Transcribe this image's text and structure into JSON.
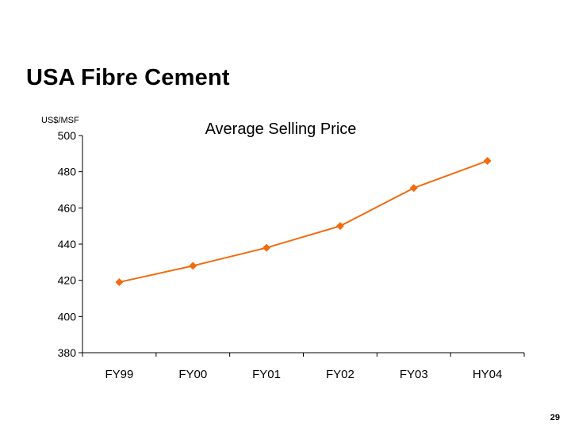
{
  "slide": {
    "title": "USA Fibre Cement",
    "page_number": "29"
  },
  "colors": {
    "series": "#f26b0f",
    "axis": "#000000",
    "background": "#ffffff"
  },
  "chart_data": {
    "type": "line",
    "title": "Average Selling Price",
    "ylabel": "US$/MSF",
    "xlabel": "",
    "categories": [
      "FY99",
      "FY00",
      "FY01",
      "FY02",
      "FY03",
      "HY04"
    ],
    "series": [
      {
        "values": [
          419,
          428,
          438,
          450,
          471,
          486
        ]
      }
    ],
    "ylim": [
      380,
      500
    ],
    "yticks": [
      380,
      400,
      420,
      440,
      460,
      480,
      500
    ],
    "grid": false,
    "legend": "none",
    "marker": "diamond"
  }
}
